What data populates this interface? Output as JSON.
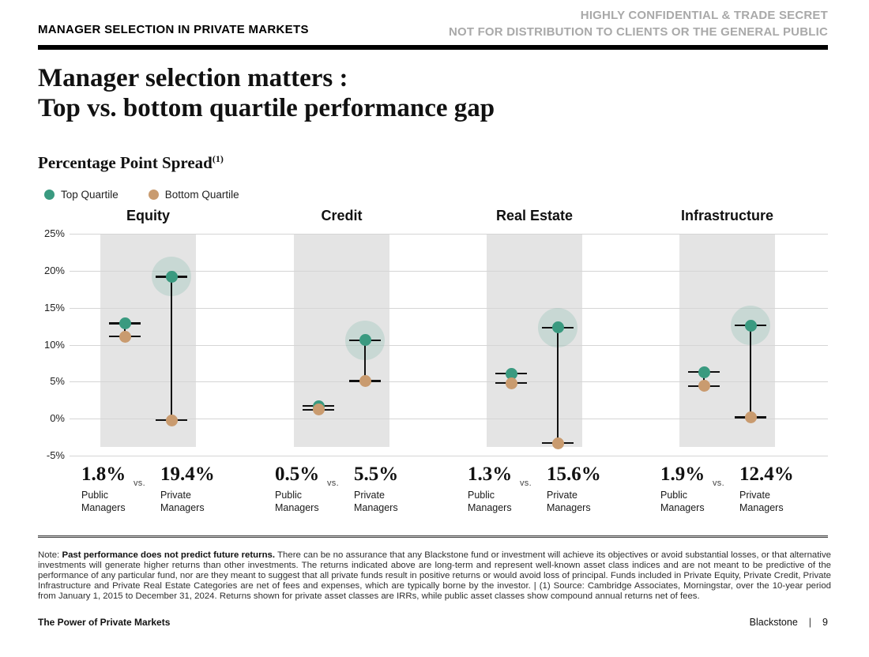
{
  "header": {
    "kicker": "MANAGER SELECTION IN PRIVATE MARKETS",
    "confidential_line1": "HIGHLY CONFIDENTIAL & TRADE SECRET",
    "confidential_line2": "NOT FOR DISTRIBUTION TO CLIENTS OR THE GENERAL PUBLIC"
  },
  "title": {
    "line1": "Manager selection matters :",
    "line2": "Top vs. bottom quartile performance gap"
  },
  "subtitle": {
    "text": "Percentage Point Spread",
    "superscript": "(1)"
  },
  "chart_data": {
    "type": "scatter",
    "subtype": "quartile-range-dot-plot",
    "title": "Percentage Point Spread",
    "legend": [
      {
        "label": "Top Quartile",
        "color": "#3a9a80"
      },
      {
        "label": "Bottom Quartile",
        "color": "#c99b6f"
      }
    ],
    "legend_position": "top-left",
    "ylim": [
      -5,
      25
    ],
    "yticks": [
      25,
      20,
      15,
      10,
      5,
      0,
      -5
    ],
    "ytick_suffix": "%",
    "grid": true,
    "colors": {
      "top_quartile": "#3a9a80",
      "bottom_quartile": "#c99b6f",
      "halo": "rgba(58,154,128,0.16)",
      "band": "#e4e4e4",
      "line": "#111111"
    },
    "series_labels": {
      "public": "Public Managers",
      "private": "Private Managers",
      "vs": "vs."
    },
    "groups": [
      {
        "name": "Equity",
        "public": {
          "top_quartile": 12.9,
          "bottom_quartile": 11.1,
          "spread_label": "1.8%"
        },
        "private": {
          "top_quartile": 19.2,
          "bottom_quartile": -0.2,
          "spread_label": "19.4%"
        }
      },
      {
        "name": "Credit",
        "public": {
          "top_quartile": 1.7,
          "bottom_quartile": 1.2,
          "spread_label": "0.5%"
        },
        "private": {
          "top_quartile": 10.6,
          "bottom_quartile": 5.1,
          "spread_label": "5.5%"
        }
      },
      {
        "name": "Real Estate",
        "public": {
          "top_quartile": 6.1,
          "bottom_quartile": 4.8,
          "spread_label": "1.3%"
        },
        "private": {
          "top_quartile": 12.3,
          "bottom_quartile": -3.3,
          "spread_label": "15.6%"
        }
      },
      {
        "name": "Infrastructure",
        "public": {
          "top_quartile": 6.3,
          "bottom_quartile": 4.4,
          "spread_label": "1.9%"
        },
        "private": {
          "top_quartile": 12.6,
          "bottom_quartile": 0.2,
          "spread_label": "12.4%"
        }
      }
    ]
  },
  "note": {
    "prefix": "Note: ",
    "bold": "Past performance does not predict future returns.",
    "body": " There can be no assurance that any Blackstone fund or investment will achieve its objectives or avoid substantial losses, or that alternative investments will generate higher returns than other investments. The returns indicated above are long-term and represent well-known asset class indices and are not meant to be predictive of the performance of any particular fund, nor are they meant to suggest that all private funds result in positive returns or would avoid loss of principal. Funds included in Private Equity, Private Credit, Private Infrastructure and Private Real Estate Categories are net of fees and expenses, which are typically borne by the investor.  |  (1) Source: Cambridge Associates, Morningstar, over the 10-year period from January 1, 2015 to December 31, 2024. Returns shown for private asset classes are IRRs, while public asset classes show compound annual returns net of fees."
  },
  "footer": {
    "left": "The Power of Private Markets",
    "brand": "Blackstone",
    "separator": "|",
    "page": "9"
  }
}
